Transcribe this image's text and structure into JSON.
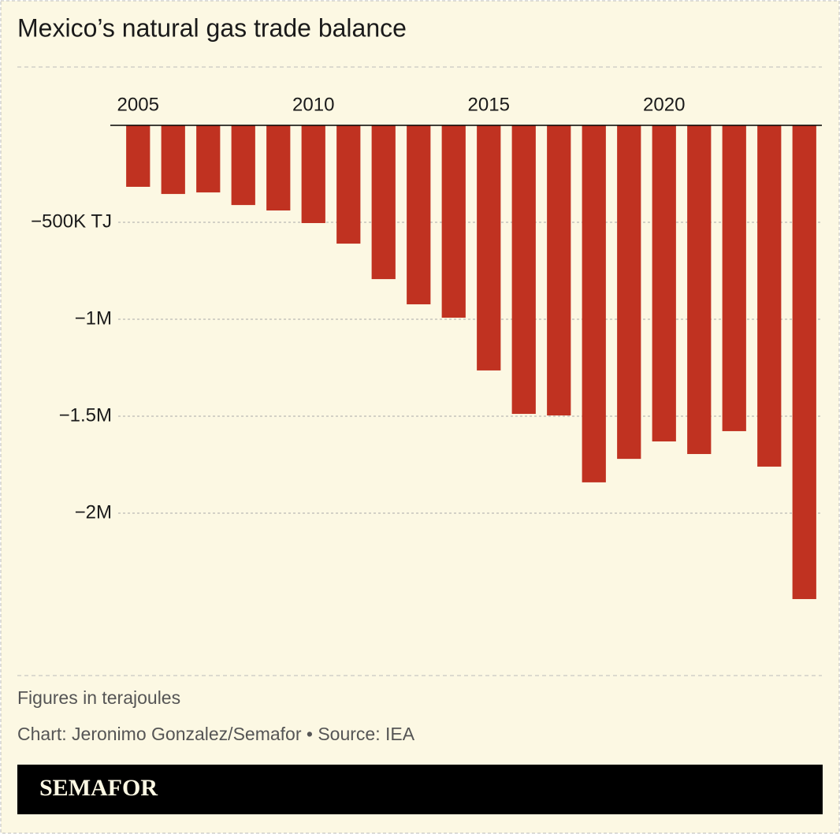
{
  "chart_data": {
    "type": "bar",
    "title": "Mexico’s natural gas trade balance",
    "x": [
      2005,
      2006,
      2007,
      2008,
      2009,
      2010,
      2011,
      2012,
      2013,
      2014,
      2015,
      2016,
      2017,
      2018,
      2019,
      2020,
      2021,
      2022,
      2023,
      2024
    ],
    "values": [
      -317000,
      -354000,
      -346000,
      -411000,
      -439000,
      -504000,
      -610000,
      -793000,
      -923000,
      -992000,
      -1264000,
      -1488000,
      -1496000,
      -1841000,
      -1720000,
      -1630000,
      -1695000,
      -1577000,
      -1760000,
      -2443000
    ],
    "color": "#c03221",
    "xlim": [
      2004.5,
      2024.5
    ],
    "xticks": [
      2005,
      2010,
      2015,
      2020
    ],
    "ylim": [
      -2500000,
      0
    ],
    "yticks": [
      {
        "value": -500000,
        "label": "−500K TJ"
      },
      {
        "value": -1000000,
        "label": "−1M"
      },
      {
        "value": -1500000,
        "label": "−1.5M"
      },
      {
        "value": -2000000,
        "label": "−2M"
      }
    ],
    "grid": true,
    "note": "Figures in terajoules",
    "credit": "Chart: Jeronimo Gonzalez/Semafor • Source: IEA",
    "brand": "SEMAFOR"
  }
}
